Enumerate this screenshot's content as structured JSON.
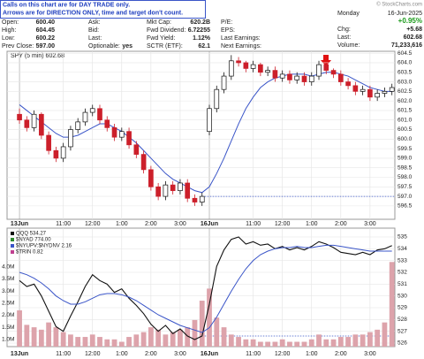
{
  "header": {
    "notice": [
      "Calls on this chart are for DAY TRADE only.",
      "Arrows are for DIRECTION ONLY, time and target don't count."
    ],
    "watermark": "© StockCharts.com",
    "rows": [
      [
        {
          "label": "Open:",
          "value": "600.40"
        },
        {
          "label": "Ask:"
        },
        {
          "label": "Mkt Cap:",
          "value": "620.2B"
        },
        {
          "label": "P/E:"
        }
      ],
      [
        {
          "label": "High:",
          "value": "604.45"
        },
        {
          "label": "Bid:"
        },
        {
          "label": "Fwd Dividend:",
          "value": "6.72255"
        },
        {
          "label": "EPS:"
        }
      ],
      [
        {
          "label": "Low:",
          "value": "600.22"
        },
        {
          "label": "Last:"
        },
        {
          "label": "Fwd Yield:",
          "value": "1.12%"
        },
        {
          "label": "Last Earnings:"
        }
      ],
      [
        {
          "label": "Prev Close:",
          "value": "597.00"
        },
        {
          "label": "Optionable:",
          "value": "yes"
        },
        {
          "label": "SCTR (ETF):",
          "value": "62.1"
        },
        {
          "label": "Next Earnings:"
        }
      ]
    ],
    "date_day": "Monday",
    "date": "16-Jun-2025",
    "change_pct": "+0.95%",
    "stats": [
      {
        "label": "Chg:",
        "value": "+5.68"
      },
      {
        "label": "Last:",
        "value": "602.68"
      },
      {
        "label": "Volume:",
        "value": "71,233,616"
      }
    ]
  },
  "chart_data": [
    {
      "type": "candlestick",
      "title": "SPY (5 min) 602.68",
      "up_color": "#111111",
      "down_color": "#cc1f2a",
      "grid": true,
      "open": [
        601.3,
        601.0,
        600.6,
        601.3,
        600.2,
        599.4,
        599.0,
        599.6,
        600.5,
        600.9,
        601.4,
        601.6,
        601.0,
        600.6,
        600.1,
        600.4,
        599.7,
        599.2,
        598.4,
        597.5,
        597.0,
        597.6,
        597.3,
        597.7,
        596.9,
        596.7,
        600.4,
        601.6,
        602.6,
        603.3,
        604.1,
        604.0,
        603.7,
        603.9,
        603.5,
        603.6,
        603.2,
        603.4,
        603.1,
        603.3,
        603.0,
        603.3,
        603.9,
        603.6,
        603.4,
        603.0,
        602.8,
        602.5,
        602.6,
        602.2,
        602.4,
        602.5
      ],
      "high": [
        601.6,
        601.2,
        601.5,
        601.4,
        600.4,
        599.6,
        599.8,
        600.7,
        601.1,
        601.6,
        601.8,
        601.8,
        601.2,
        600.8,
        600.6,
        600.6,
        599.9,
        599.4,
        598.6,
        597.7,
        597.8,
        597.8,
        597.9,
        597.9,
        597.1,
        597.2,
        601.8,
        602.8,
        603.5,
        604.4,
        604.3,
        604.1,
        604.1,
        604.0,
        603.8,
        603.8,
        603.6,
        603.6,
        603.5,
        603.5,
        603.5,
        604.1,
        604.0,
        603.7,
        603.6,
        603.2,
        603.0,
        602.8,
        602.8,
        602.6,
        602.7,
        602.9
      ],
      "low": [
        600.8,
        600.4,
        600.4,
        600.0,
        599.2,
        598.8,
        598.8,
        599.4,
        600.3,
        600.7,
        601.2,
        600.8,
        600.4,
        599.9,
        599.9,
        599.5,
        599.0,
        598.2,
        597.3,
        596.8,
        596.8,
        597.1,
        597.1,
        596.7,
        596.5,
        596.5,
        600.2,
        601.4,
        602.4,
        603.1,
        603.8,
        603.5,
        603.5,
        603.3,
        603.3,
        603.0,
        603.0,
        602.9,
        602.9,
        602.8,
        602.8,
        603.1,
        603.4,
        603.2,
        602.8,
        602.6,
        602.3,
        602.3,
        602.0,
        602.0,
        602.2,
        602.3
      ],
      "close": [
        601.0,
        600.6,
        601.3,
        600.2,
        599.4,
        599.0,
        599.6,
        600.5,
        600.9,
        601.4,
        601.6,
        601.0,
        600.6,
        600.1,
        600.4,
        599.7,
        599.2,
        598.4,
        597.5,
        597.0,
        597.6,
        597.3,
        597.7,
        596.9,
        596.7,
        597.0,
        601.6,
        602.6,
        603.3,
        604.1,
        604.0,
        603.7,
        603.9,
        603.5,
        603.6,
        603.2,
        603.4,
        603.1,
        603.3,
        603.0,
        603.3,
        603.9,
        603.6,
        603.4,
        603.0,
        602.8,
        602.5,
        602.6,
        602.2,
        602.4,
        602.5,
        602.7
      ],
      "ma": {
        "color": "#3a55c8",
        "values": [
          601.8,
          601.5,
          601.2,
          600.9,
          600.6,
          600.3,
          600.1,
          600.1,
          600.2,
          600.4,
          600.6,
          600.8,
          600.8,
          600.6,
          600.4,
          600.1,
          599.8,
          599.4,
          599.0,
          598.6,
          598.2,
          597.9,
          597.7,
          597.5,
          597.3,
          597.2,
          597.5,
          598.2,
          599.0,
          599.9,
          600.8,
          601.6,
          602.2,
          602.7,
          603.0,
          603.2,
          603.3,
          603.4,
          603.4,
          603.4,
          603.3,
          603.4,
          603.5,
          603.5,
          603.4,
          603.3,
          603.1,
          602.9,
          602.7,
          602.6,
          602.5,
          602.5
        ]
      },
      "prev_close": 597,
      "xlim": [
        -1.7,
        51.4
      ],
      "xticks": [
        {
          "value": 0,
          "label": "13Jun"
        },
        {
          "value": 6,
          "label": "11:00"
        },
        {
          "value": 10,
          "label": "12:00"
        },
        {
          "value": 14,
          "label": "1:00"
        },
        {
          "value": 18,
          "label": "2:00"
        },
        {
          "value": 22,
          "label": "3:00"
        },
        {
          "value": 26,
          "label": "16Jun"
        },
        {
          "value": 32,
          "label": "11:00"
        },
        {
          "value": 36,
          "label": "12:00"
        },
        {
          "value": 40,
          "label": "1:00"
        },
        {
          "value": 44,
          "label": "2:00"
        },
        {
          "value": 48,
          "label": "3:00"
        }
      ],
      "ylim": [
        595.8,
        604.6
      ],
      "yticks": [
        596.5,
        {
          "value": 597,
          "label": "597.0"
        },
        597.5,
        {
          "value": 598,
          "label": "598.0"
        },
        598.5,
        {
          "value": 599,
          "label": "599.0"
        },
        599.5,
        {
          "value": 600,
          "label": "600.0"
        },
        600.5,
        {
          "value": 601,
          "label": "601.0"
        },
        601.5,
        {
          "value": 602,
          "label": "602.0"
        },
        602.5,
        {
          "value": 603,
          "label": "603.0"
        },
        603.5,
        {
          "value": 604,
          "label": "604.0"
        },
        604.5
      ]
    },
    {
      "type": "line",
      "grid": true,
      "legend": [
        "QQQ 534.27",
        "$NYAD 774.00",
        "$NYUPV:$NYDNV 2.16",
        "$TRIN 0.82"
      ],
      "legend_colors": [
        "#111111",
        "#2d8a2d",
        "#3a55c8",
        "#c04090"
      ],
      "series": [
        {
          "color": "#111111",
          "values": [
            531.3,
            530.8,
            531.0,
            530.0,
            528.7,
            527.4,
            527.0,
            528.3,
            529.5,
            530.8,
            531.8,
            531.3,
            531.0,
            530.3,
            530.6,
            529.8,
            529.2,
            528.5,
            527.6,
            527.0,
            527.5,
            526.8,
            527.2,
            526.6,
            526.3,
            526.6,
            529.3,
            532.5,
            533.9,
            534.8,
            535.0,
            534.4,
            534.6,
            534.3,
            534.4,
            534.0,
            534.2,
            533.9,
            534.1,
            533.9,
            534.2,
            534.6,
            534.4,
            534.1,
            533.7,
            533.6,
            533.5,
            533.7,
            533.5,
            533.9,
            534.0,
            534.27
          ]
        },
        {
          "color": "#3a55c8",
          "values": [
            532.0,
            531.8,
            531.5,
            531.1,
            530.6,
            530.0,
            529.6,
            529.3,
            529.3,
            529.5,
            529.8,
            530.1,
            530.2,
            530.2,
            530.1,
            529.9,
            529.6,
            529.2,
            528.8,
            528.4,
            528.1,
            527.8,
            527.5,
            527.3,
            527.1,
            526.9,
            527.3,
            528.2,
            529.3,
            530.4,
            531.4,
            532.3,
            533.0,
            533.5,
            533.8,
            534.0,
            534.1,
            534.1,
            534.2,
            534.1,
            534.1,
            534.2,
            534.3,
            534.3,
            534.2,
            534.1,
            534.0,
            533.9,
            533.8,
            533.8,
            533.8,
            533.8
          ]
        },
        {
          "color": "#dda3ab",
          "type": "bar",
          "axis": "y2",
          "values": [
            2200000,
            1600000,
            1500000,
            1400000,
            1700000,
            1500000,
            1300000,
            1200000,
            1100000,
            1100000,
            1200000,
            1100000,
            1000000,
            1000000,
            900000,
            1100000,
            1200000,
            1300000,
            1500000,
            1400000,
            1200000,
            1300000,
            1400000,
            1500000,
            1800000,
            2600000,
            3100000,
            1900000,
            1500000,
            1200000,
            1100000,
            1000000,
            1000000,
            900000,
            900000,
            900000,
            1000000,
            900000,
            900000,
            900000,
            1000000,
            1200000,
            1000000,
            1000000,
            1100000,
            1100000,
            1200000,
            1200000,
            1300000,
            1400000,
            1700000,
            4200000
          ]
        }
      ],
      "prev_close": 526.6,
      "xlim": [
        -1.7,
        51.4
      ],
      "xticks": [
        {
          "value": 0,
          "label": "13Jun"
        },
        {
          "value": 6,
          "label": "11:00"
        },
        {
          "value": 10,
          "label": "12:00"
        },
        {
          "value": 14,
          "label": "1:00"
        },
        {
          "value": 18,
          "label": "2:00"
        },
        {
          "value": 22,
          "label": "3:00"
        },
        {
          "value": 26,
          "label": "16Jun"
        },
        {
          "value": 32,
          "label": "11:00"
        },
        {
          "value": 36,
          "label": "12:00"
        },
        {
          "value": 40,
          "label": "1:00"
        },
        {
          "value": 44,
          "label": "2:00"
        },
        {
          "value": 48,
          "label": "3:00"
        }
      ],
      "ylim": [
        525.7,
        535.75
      ],
      "yticks": [
        526,
        527,
        528,
        529,
        530,
        531,
        532,
        533,
        534,
        535
      ],
      "y2lim": [
        700000,
        5600000
      ],
      "y2ticks": [
        {
          "value": 1000000,
          "label": "1.0M"
        },
        {
          "value": 1500000,
          "label": "1.5M"
        },
        {
          "value": 2000000,
          "label": "2.0M"
        },
        {
          "value": 2500000,
          "label": "2.5M"
        },
        {
          "value": 3000000,
          "label": "3.0M"
        },
        {
          "value": 3500000,
          "label": "3.5M"
        },
        {
          "value": 4000000,
          "label": "4.0M"
        }
      ]
    }
  ]
}
